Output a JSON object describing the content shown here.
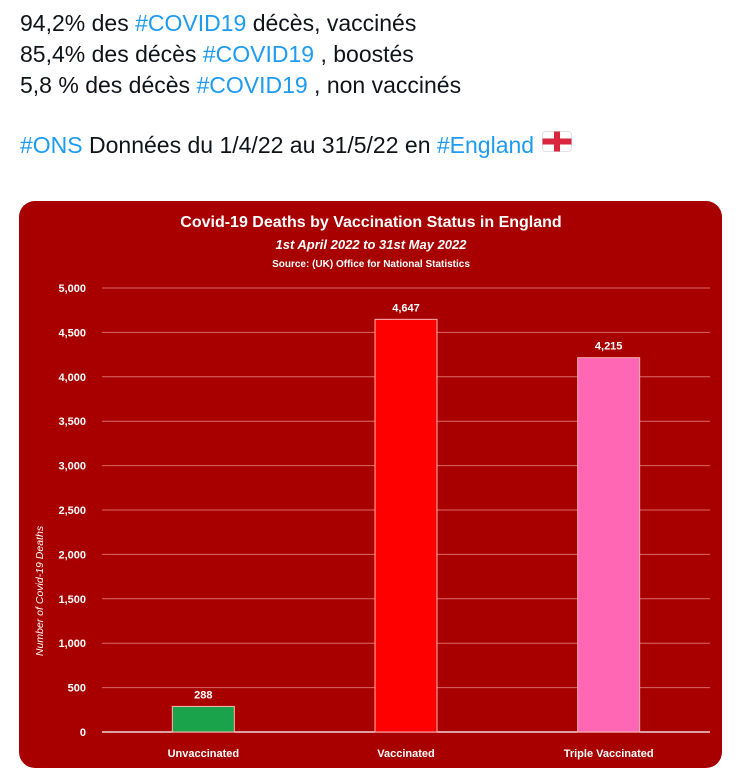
{
  "tweet": {
    "line1": {
      "before": "94,2% des ",
      "tag": "#COVID19",
      "after": " décès, vaccinés"
    },
    "line2": {
      "before": "85,4% des décès ",
      "tag": "#COVID19",
      "after": " , boostés"
    },
    "line3": {
      "before": "5,8 % des décès ",
      "tag": "#COVID19",
      "after": " , non vaccinés"
    },
    "line4": {
      "tag1": "#ONS",
      "middle": " Données du 1/4/22 au 31/5/22 en ",
      "tag2": "#England",
      "flag_icon": "england-flag-icon"
    }
  },
  "colors": {
    "hashtag": "#1d9bf0",
    "card_background": "#a80000",
    "bar_unvaccinated": "#1aa34a",
    "bar_vaccinated": "#ff0000",
    "bar_triple": "#ff66b3"
  },
  "chart_data": {
    "type": "bar",
    "title": "Covid-19 Deaths by Vaccination Status in England",
    "subtitle": "1st April 2022 to 31st May 2022",
    "source": "Source: (UK) Office for National Statistics",
    "xlabel": "",
    "ylabel": "Number of Covid-19 Deaths",
    "ylim": [
      0,
      5000
    ],
    "yticks": [
      0,
      500,
      1000,
      1500,
      2000,
      2500,
      3000,
      3500,
      4000,
      4500,
      5000
    ],
    "ytick_labels": [
      "0",
      "500",
      "1,000",
      "1,500",
      "2,000",
      "2,500",
      "3,000",
      "3,500",
      "4,000",
      "4,500",
      "5,000"
    ],
    "grid": true,
    "categories": [
      "Unvaccinated",
      "Vaccinated",
      "Triple Vaccinated"
    ],
    "values": [
      288,
      4647,
      4215
    ],
    "data_labels": [
      "288",
      "4,647",
      "4,215"
    ],
    "bar_colors": [
      "#1aa34a",
      "#ff0000",
      "#ff66b3"
    ]
  }
}
